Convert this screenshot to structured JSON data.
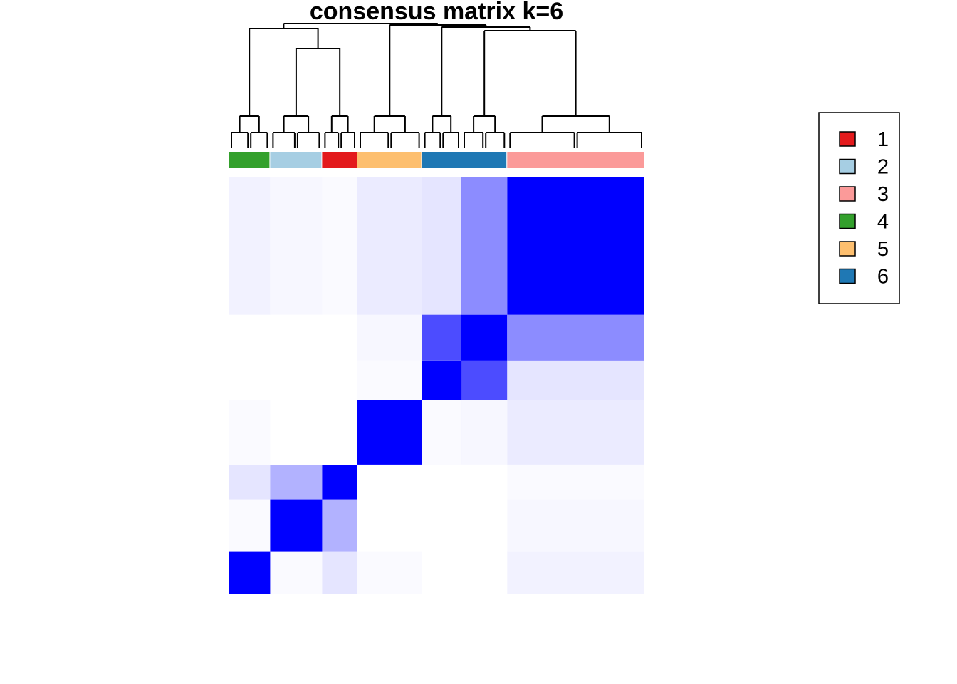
{
  "chart_data": {
    "type": "heatmap",
    "title": "consensus matrix k=6",
    "colormap": {
      "low": "#FFFFFF",
      "high": "#0000FF"
    },
    "row_order_clusters": [
      4,
      2,
      1,
      5,
      6,
      6,
      3
    ],
    "cluster_fractions": [
      0.1,
      0.125,
      0.085,
      0.155,
      0.095,
      0.11,
      0.33
    ],
    "consensus_blocks": [
      [
        1.0,
        0.02,
        0.1,
        0.02,
        0.0,
        0.0,
        0.05
      ],
      [
        0.02,
        1.0,
        0.3,
        0.0,
        0.0,
        0.0,
        0.03
      ],
      [
        0.1,
        0.3,
        1.0,
        0.0,
        0.0,
        0.0,
        0.02
      ],
      [
        0.02,
        0.0,
        0.0,
        1.0,
        0.02,
        0.03,
        0.08
      ],
      [
        0.0,
        0.0,
        0.0,
        0.02,
        1.0,
        0.7,
        0.1
      ],
      [
        0.0,
        0.0,
        0.0,
        0.03,
        0.7,
        1.0,
        0.45
      ],
      [
        0.05,
        0.03,
        0.02,
        0.08,
        0.1,
        0.45,
        1.0
      ]
    ],
    "legend": [
      {
        "label": "1",
        "color": "#E31A1C"
      },
      {
        "label": "2",
        "color": "#A6CEE3"
      },
      {
        "label": "3",
        "color": "#FB9A99"
      },
      {
        "label": "4",
        "color": "#33A02C"
      },
      {
        "label": "5",
        "color": "#FDBF6F"
      },
      {
        "label": "6",
        "color": "#1F78B4"
      }
    ],
    "legend_position": "right",
    "xlabel": "",
    "ylabel": "",
    "grid": false
  }
}
